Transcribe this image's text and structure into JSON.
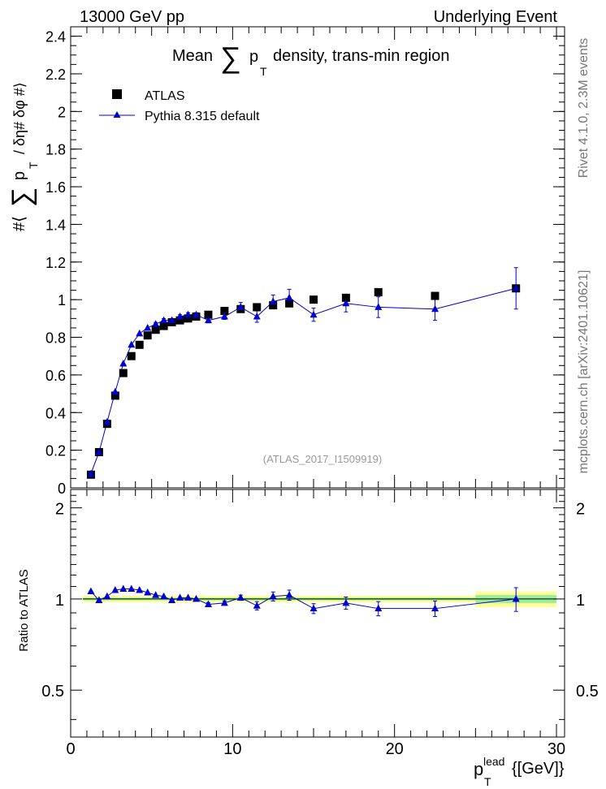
{
  "header": {
    "left": "13000 GeV pp",
    "right": "Underlying Event"
  },
  "side_labels": {
    "rivet": "Rivet 4.1.0,  2.3M events",
    "mcplots": "mcplots.cern.ch [arXiv:2401.10621]"
  },
  "chart_data": [
    {
      "type": "scatter",
      "title": "Mean ∑ p_T density, trans-min region",
      "title_parts": {
        "pre": "Mean",
        "sigma": "∑",
        "p": "p",
        "sub": "T",
        "post": "density, trans-min region"
      },
      "ylabel_parts": {
        "pre": "#⟨",
        "sigma": "∑",
        "p": "p",
        "sub": "T",
        "post": "/ δη# δφ #⟩"
      },
      "watermark": "(ATLAS_2017_I1509919)",
      "xlim": [
        0,
        30.5
      ],
      "ylim": [
        0,
        2.45
      ],
      "yticks": [
        0,
        0.2,
        0.4,
        0.6,
        0.8,
        1,
        1.2,
        1.4,
        1.6,
        1.8,
        2,
        2.2,
        2.4
      ],
      "ytick_labels": [
        "0",
        "0.2",
        "0.4",
        "0.6",
        "0.8",
        "1",
        "1.2",
        "1.4",
        "1.6",
        "1.8",
        "2",
        "2.2",
        "2.4"
      ],
      "legend": {
        "position": "top-left",
        "entries": [
          "ATLAS",
          "Pythia 8.315 default"
        ]
      },
      "series": [
        {
          "name": "ATLAS",
          "marker": "square",
          "x": [
            1.25,
            1.75,
            2.25,
            2.75,
            3.25,
            3.75,
            4.25,
            4.75,
            5.25,
            5.75,
            6.25,
            6.75,
            7.25,
            7.75,
            8.5,
            9.5,
            10.5,
            11.5,
            12.5,
            13.5,
            15,
            17,
            19,
            22.5,
            27.5
          ],
          "y": [
            0.07,
            0.19,
            0.34,
            0.49,
            0.61,
            0.7,
            0.76,
            0.81,
            0.84,
            0.86,
            0.88,
            0.89,
            0.9,
            0.91,
            0.92,
            0.94,
            0.95,
            0.96,
            0.97,
            0.98,
            1.0,
            1.01,
            1.04,
            1.02,
            1.06
          ]
        },
        {
          "name": "Pythia 8.315 default",
          "marker": "triangle",
          "color": "#0000cc",
          "x": [
            1.25,
            1.75,
            2.25,
            2.75,
            3.25,
            3.75,
            4.25,
            4.75,
            5.25,
            5.75,
            6.25,
            6.75,
            7.25,
            7.75,
            8.5,
            9.5,
            10.5,
            11.5,
            12.5,
            13.5,
            15,
            17,
            19,
            22.5,
            27.5
          ],
          "y": [
            0.075,
            0.19,
            0.35,
            0.51,
            0.66,
            0.76,
            0.82,
            0.85,
            0.87,
            0.89,
            0.89,
            0.91,
            0.92,
            0.92,
            0.89,
            0.91,
            0.96,
            0.91,
            0.99,
            1.01,
            0.92,
            0.98,
            0.96,
            0.95,
            1.06
          ],
          "yerr": [
            0.003,
            0.004,
            0.005,
            0.006,
            0.007,
            0.007,
            0.008,
            0.008,
            0.009,
            0.009,
            0.01,
            0.01,
            0.011,
            0.011,
            0.013,
            0.015,
            0.025,
            0.03,
            0.035,
            0.045,
            0.035,
            0.045,
            0.055,
            0.06,
            0.11
          ]
        }
      ]
    },
    {
      "type": "scatter",
      "ylabel": "Ratio to ATLAS",
      "xlabel_parts": {
        "p": "p",
        "sup": "lead",
        "sub": "T",
        "unit": "{[GeV]}"
      },
      "xlim": [
        0,
        30.5
      ],
      "ylim": [
        0.35,
        2.3
      ],
      "yticks": [
        0.5,
        1,
        2
      ],
      "ytick_labels": [
        "0.5",
        "1",
        "2"
      ],
      "xticks": [
        0,
        10,
        20,
        30
      ],
      "xtick_labels": [
        "0",
        "10",
        "20",
        "30"
      ],
      "bands": [
        {
          "x0": 0.75,
          "x1": 25,
          "inner": 0.01,
          "outer": 0.025
        },
        {
          "x0": 25,
          "x1": 30,
          "inner": 0.03,
          "outer": 0.06
        }
      ],
      "series": [
        {
          "name": "Pythia 8.315 default",
          "marker": "triangle",
          "color": "#0000cc",
          "x": [
            1.25,
            1.75,
            2.25,
            2.75,
            3.25,
            3.75,
            4.25,
            4.75,
            5.25,
            5.75,
            6.25,
            6.75,
            7.25,
            7.75,
            8.5,
            9.5,
            10.5,
            11.5,
            12.5,
            13.5,
            15,
            17,
            19,
            22.5,
            27.5
          ],
          "y": [
            1.06,
            0.99,
            1.02,
            1.07,
            1.08,
            1.08,
            1.07,
            1.05,
            1.03,
            1.02,
            0.99,
            1.01,
            1.01,
            1.0,
            0.96,
            0.97,
            1.01,
            0.95,
            1.02,
            1.03,
            0.93,
            0.97,
            0.93,
            0.93,
            1.0
          ],
          "yerr": [
            0.005,
            0.005,
            0.005,
            0.005,
            0.005,
            0.006,
            0.006,
            0.006,
            0.007,
            0.007,
            0.008,
            0.009,
            0.01,
            0.011,
            0.013,
            0.015,
            0.02,
            0.03,
            0.035,
            0.04,
            0.035,
            0.045,
            0.05,
            0.055,
            0.09
          ]
        }
      ]
    }
  ]
}
